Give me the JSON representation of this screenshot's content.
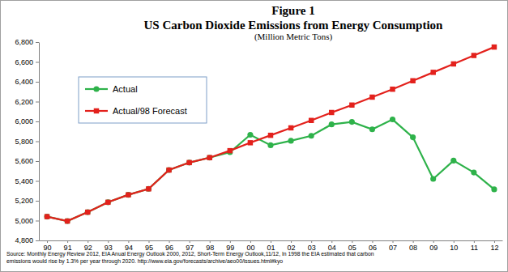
{
  "chart_data": {
    "type": "line",
    "title": "Figure 1",
    "subtitle": "US Carbon Dioxide Emissions from Energy Consumption",
    "ylabel": "(Million Metric Tons)",
    "annotations": [
      "Source: Monthly Energy Review 2012, EIA Anual Energy Outlook  2000, 2012,  Short-Term Energy Outlook,11/12, In 1998 the EIA estimated that carbon",
      "emissions would rise by 1.3% per year through 2020. http://www.eia.gov/forecasts/archive/aeo00/issues.html#kyo"
    ],
    "categories": [
      "90",
      "91",
      "92",
      "93",
      "94",
      "95",
      "96",
      "97",
      "98",
      "99",
      "00",
      "01",
      "02",
      "03",
      "04",
      "05",
      "06",
      "07",
      "08",
      "09",
      "10",
      "11",
      "12"
    ],
    "series": [
      {
        "name": "Actual",
        "color": "#2eb24a",
        "marker": "circle",
        "values": [
          5040,
          4995,
          5085,
          5185,
          5260,
          5320,
          5510,
          5585,
          5635,
          5690,
          5865,
          5760,
          5805,
          5855,
          5970,
          5995,
          5920,
          6020,
          5840,
          5420,
          5605,
          5485,
          5315
        ]
      },
      {
        "name": "Actual/98 Forecast",
        "color": "#e3211c",
        "marker": "square",
        "values": [
          5040,
          4995,
          5085,
          5185,
          5260,
          5320,
          5510,
          5585,
          5635,
          5705,
          5785,
          5860,
          5935,
          6010,
          6090,
          6165,
          6245,
          6325,
          6410,
          6495,
          6580,
          6665,
          6750
        ]
      }
    ],
    "ylim": [
      4800,
      6800
    ],
    "yticks": [
      {
        "value": 4800,
        "label": "4,800"
      },
      {
        "value": 5000,
        "label": "5,000"
      },
      {
        "value": 5200,
        "label": "5,200"
      },
      {
        "value": 5400,
        "label": "5,400"
      },
      {
        "value": 5600,
        "label": "5,600"
      },
      {
        "value": 5800,
        "label": "5,800"
      },
      {
        "value": 6000,
        "label": "6,000"
      },
      {
        "value": 6200,
        "label": "6,200"
      },
      {
        "value": 6400,
        "label": "6,400"
      },
      {
        "value": 6600,
        "label": "6,600"
      },
      {
        "value": 6800,
        "label": "6,800"
      }
    ],
    "grid": false,
    "legend": "upper left"
  }
}
